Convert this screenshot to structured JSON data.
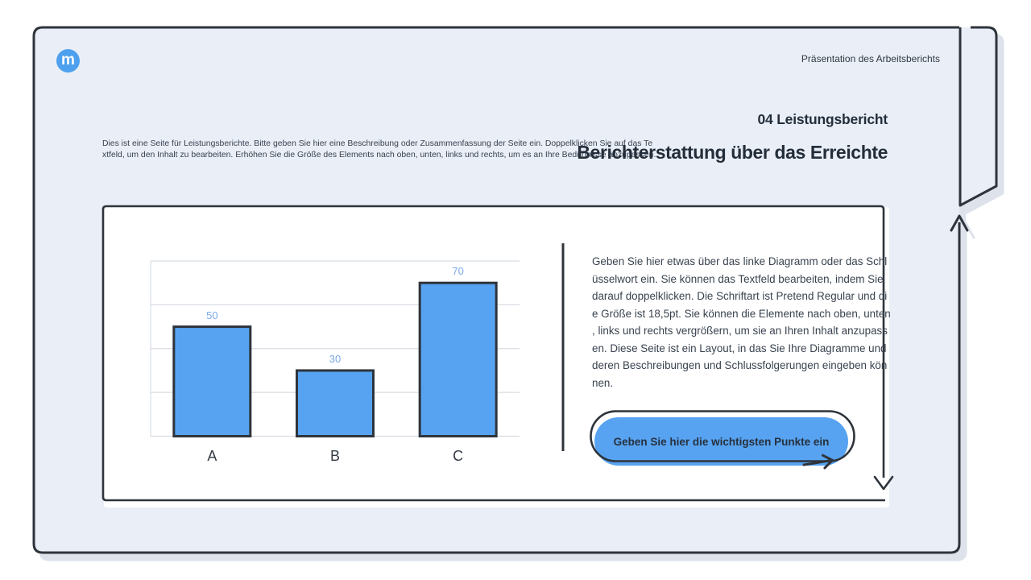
{
  "header": {
    "logo_letter": "m",
    "presentation_label": "Präsentation des Arbeitsberichts"
  },
  "titles": {
    "section": "04 Leistungsbericht",
    "main": "Berichterstattung über das Erreichte"
  },
  "description": "Dies ist eine Seite für Leistungsberichte. Bitte geben Sie hier eine Beschreibung oder Zusammenfassung der Seite ein. Doppelklicken Sie auf das Te\nxtfeld, um den Inhalt zu bearbeiten. Erhöhen Sie die Größe des Elements nach oben, unten, links und rechts, um es an Ihre Bedürfnisse anzupassen.",
  "chart_note": "Geben Sie hier etwas über das linke Diagramm oder das Schl\nüsselwort ein. Sie können das Textfeld bearbeiten, indem Sie\ndarauf doppelklicken. Die Schriftart ist Pretend Regular und di\ne Größe ist 18,5pt. Sie können die Elemente nach oben, unten\n, links und rechts vergrößern, um sie an Ihren Inhalt anzupass\nen. Diese Seite ist ein Layout, in das Sie Ihre Diagramme und\nderen Beschreibungen und Schlussfolgerungen eingeben kön\nnen.",
  "cta": {
    "label": "Geben Sie hier die wichtigsten Punkte ein"
  },
  "chart_data": {
    "type": "bar",
    "categories": [
      "A",
      "B",
      "C"
    ],
    "values": [
      50,
      30,
      70
    ],
    "title": "",
    "xlabel": "",
    "ylabel": "",
    "ylim": [
      0,
      80
    ],
    "grid": true,
    "gridline_step": 20,
    "legend": false,
    "bar_color": "#57a3f1",
    "bar_border_color": "#2e343b",
    "value_label_color": "#7aa9e8"
  },
  "icons": {
    "logo": "m-logo-icon",
    "up_arrow": "up-arrow-icon",
    "down_arrow": "down-arrow-icon",
    "cta_arrow": "right-arrow-icon"
  },
  "colors": {
    "page_bg": "#ffffff",
    "card_bg": "#e9eef7",
    "outline_dark": "#2e343b",
    "accent_blue": "#57a3f1",
    "logo_blue": "#4da0ee",
    "heading_text": "#242e3a",
    "body_text": "#39434f",
    "grid_line": "#d8dce3",
    "shadow": "#dde2eb"
  }
}
